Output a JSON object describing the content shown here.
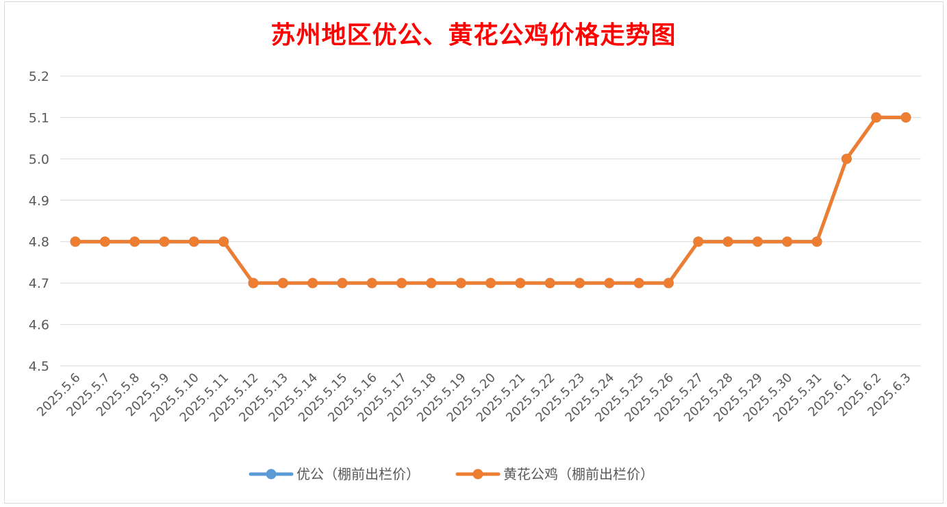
{
  "chart_data": {
    "type": "line",
    "title": "苏州地区优公、黄花公鸡价格走势图",
    "categories": [
      "2025.5.6",
      "2025.5.7",
      "2025.5.8",
      "2025.5.9",
      "2025.5.10",
      "2025.5.11",
      "2025.5.12",
      "2025.5.13",
      "2025.5.14",
      "2025.5.15",
      "2025.5.16",
      "2025.5.17",
      "2025.5.18",
      "2025.5.19",
      "2025.5.20",
      "2025.5.21",
      "2025.5.22",
      "2025.5.23",
      "2025.5.24",
      "2025.5.25",
      "2025.5.26",
      "2025.5.27",
      "2025.5.28",
      "2025.5.29",
      "2025.5.30",
      "2025.5.31",
      "2025.6.1",
      "2025.6.2",
      "2025.6.3"
    ],
    "yticks": [
      "4.5",
      "4.6",
      "4.7",
      "4.8",
      "4.9",
      "5.0",
      "5.1",
      "5.2"
    ],
    "ylim": [
      4.5,
      5.2
    ],
    "grid": true,
    "legend_position": "bottom",
    "series": [
      {
        "name": "优公（棚前出栏价）",
        "color": "#5b9bd5",
        "values": [
          4.8,
          4.8,
          4.8,
          4.8,
          4.8,
          4.8,
          4.7,
          4.7,
          4.7,
          4.7,
          4.7,
          4.7,
          4.7,
          4.7,
          4.7,
          4.7,
          4.7,
          4.7,
          4.7,
          4.7,
          4.7,
          4.8,
          4.8,
          4.8,
          4.8,
          4.8,
          5.0,
          5.1,
          5.1
        ]
      },
      {
        "name": "黄花公鸡（棚前出栏价）",
        "color": "#ed7d31",
        "values": [
          4.8,
          4.8,
          4.8,
          4.8,
          4.8,
          4.8,
          4.7,
          4.7,
          4.7,
          4.7,
          4.7,
          4.7,
          4.7,
          4.7,
          4.7,
          4.7,
          4.7,
          4.7,
          4.7,
          4.7,
          4.7,
          4.8,
          4.8,
          4.8,
          4.8,
          4.8,
          5.0,
          5.1,
          5.1
        ]
      }
    ]
  }
}
